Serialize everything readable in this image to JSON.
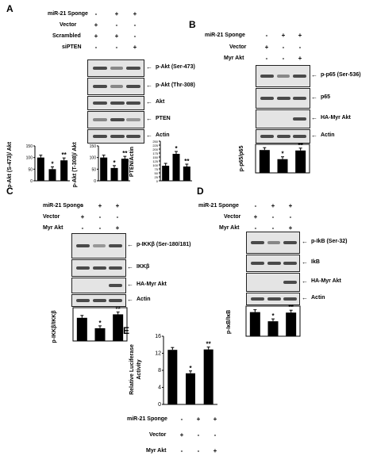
{
  "panels": {
    "A": {
      "label": "A",
      "conditions": [
        {
          "name": "miR-21 Sponge",
          "marks": [
            "-",
            "+",
            "+"
          ]
        },
        {
          "name": "Vector",
          "marks": [
            "+",
            "-",
            "-"
          ]
        },
        {
          "name": "Scrambled",
          "marks": [
            "+",
            "+",
            "-"
          ]
        },
        {
          "name": "siPTEN",
          "marks": [
            "-",
            "-",
            "+"
          ]
        }
      ],
      "blots": [
        "p-Akt (Ser-473)",
        "p-Akt (Thr-308)",
        "Akt",
        "PTEN",
        "Actin"
      ],
      "bars": [
        {
          "ylabel": "p-Akt (S-473)/ Akt",
          "values": [
            100,
            50,
            88
          ],
          "stars": [
            "",
            "*",
            "**"
          ],
          "ylim": [
            0,
            150
          ],
          "ticks": [
            "0",
            "50",
            "100",
            "150"
          ]
        },
        {
          "ylabel": "p-Akt (T-308)/ Akt",
          "values": [
            100,
            55,
            95
          ],
          "stars": [
            "",
            "*",
            "**"
          ],
          "ylim": [
            0,
            150
          ],
          "ticks": [
            "0",
            "50",
            "100",
            "150"
          ]
        },
        {
          "ylabel": "PTEN/Actin",
          "values": [
            95,
            170,
            90
          ],
          "stars": [
            "",
            "*",
            "**"
          ],
          "ylim": [
            0,
            250
          ],
          "ticks": [
            "0",
            "25",
            "50",
            "75",
            "100",
            "125",
            "150",
            "175",
            "200",
            "225",
            "250"
          ]
        }
      ]
    },
    "B": {
      "label": "B",
      "conditions": [
        {
          "name": "miR-21 Sponge",
          "marks": [
            "-",
            "+",
            "+"
          ]
        },
        {
          "name": "Vector",
          "marks": [
            "+",
            "-",
            "-"
          ]
        },
        {
          "name": "Myr Akt",
          "marks": [
            "-",
            "-",
            "+"
          ]
        }
      ],
      "blots": [
        "p-p65 (Ser-536)",
        "p65",
        "HA-Myr Akt",
        "Actin"
      ],
      "bars": [
        {
          "ylabel": "p-p65/p65",
          "values": [
            100,
            60,
            98
          ],
          "stars": [
            "",
            "*",
            "**"
          ]
        }
      ]
    },
    "C": {
      "label": "C",
      "conditions": [
        {
          "name": "miR-21 Sponge",
          "marks": [
            "-",
            "+",
            "+"
          ]
        },
        {
          "name": "Vector",
          "marks": [
            "+",
            "-",
            "-"
          ]
        },
        {
          "name": "Myr Akt",
          "marks": [
            "-",
            "-",
            "+"
          ]
        }
      ],
      "blots": [
        "p-IKKβ (Ser-180/181)",
        "IKKβ",
        "HA-Myr Akt",
        "Actin"
      ],
      "bars": [
        {
          "ylabel": "p-IKKβ/IKKβ",
          "values": [
            100,
            55,
            115
          ],
          "stars": [
            "",
            "*",
            "**"
          ]
        }
      ]
    },
    "D": {
      "label": "D",
      "conditions": [
        {
          "name": "miR-21 Sponge",
          "marks": [
            "-",
            "+",
            "+"
          ]
        },
        {
          "name": "Vector",
          "marks": [
            "+",
            "-",
            "-"
          ]
        },
        {
          "name": "Myr Akt",
          "marks": [
            "-",
            "-",
            "+"
          ]
        }
      ],
      "blots": [
        "p-IkB (Ser-32)",
        "IkB",
        "HA-Myr Akt",
        "Actin"
      ],
      "bars": [
        {
          "ylabel": "p-IκB/IκB",
          "values": [
            100,
            62,
            98
          ],
          "stars": [
            "",
            "*",
            "**"
          ]
        }
      ]
    },
    "E": {
      "label": "E",
      "chart": {
        "ylabel": "Relative Luciferase Activity",
        "values": [
          12.8,
          7.3,
          12.9
        ],
        "stars": [
          "",
          "*",
          "**"
        ],
        "ylim": [
          0,
          16
        ],
        "ticks": [
          "0",
          "4",
          "8",
          "12",
          "16"
        ]
      },
      "conditions": [
        {
          "name": "miR-21 Sponge",
          "marks": [
            "-",
            "+",
            "+"
          ]
        },
        {
          "name": "Vector",
          "marks": [
            "+",
            "-",
            "-"
          ]
        },
        {
          "name": "Myr Akt",
          "marks": [
            "-",
            "-",
            "+"
          ]
        }
      ]
    }
  },
  "chart_data": [
    {
      "type": "bar",
      "categories": [
        "Vector",
        "miR-21 Sponge",
        "miR-21 Sponge + siPTEN"
      ],
      "values": [
        100,
        50,
        88
      ],
      "ylabel": "p-Akt (S-473)/ Akt",
      "ylim": [
        0,
        150
      ]
    },
    {
      "type": "bar",
      "categories": [
        "Vector",
        "miR-21 Sponge",
        "miR-21 Sponge + siPTEN"
      ],
      "values": [
        100,
        55,
        95
      ],
      "ylabel": "p-Akt (T-308)/ Akt",
      "ylim": [
        0,
        150
      ]
    },
    {
      "type": "bar",
      "categories": [
        "Vector",
        "miR-21 Sponge",
        "miR-21 Sponge + siPTEN"
      ],
      "values": [
        95,
        170,
        90
      ],
      "ylabel": "PTEN/Actin",
      "ylim": [
        0,
        250
      ]
    },
    {
      "type": "bar",
      "categories": [
        "Vector",
        "miR-21 Sponge",
        "miR-21 Sponge + Myr Akt"
      ],
      "values": [
        100,
        60,
        98
      ],
      "ylabel": "p-p65/p65"
    },
    {
      "type": "bar",
      "categories": [
        "Vector",
        "miR-21 Sponge",
        "miR-21 Sponge + Myr Akt"
      ],
      "values": [
        100,
        55,
        115
      ],
      "ylabel": "p-IKKβ/IKKβ"
    },
    {
      "type": "bar",
      "categories": [
        "Vector",
        "miR-21 Sponge",
        "miR-21 Sponge + Myr Akt"
      ],
      "values": [
        100,
        62,
        98
      ],
      "ylabel": "p-IκB/IκB"
    },
    {
      "type": "bar",
      "categories": [
        "Vector",
        "miR-21 Sponge",
        "miR-21 Sponge + Myr Akt"
      ],
      "values": [
        12.8,
        7.3,
        12.9
      ],
      "ylabel": "Relative Luciferase Activity",
      "ylim": [
        0,
        16
      ]
    }
  ]
}
